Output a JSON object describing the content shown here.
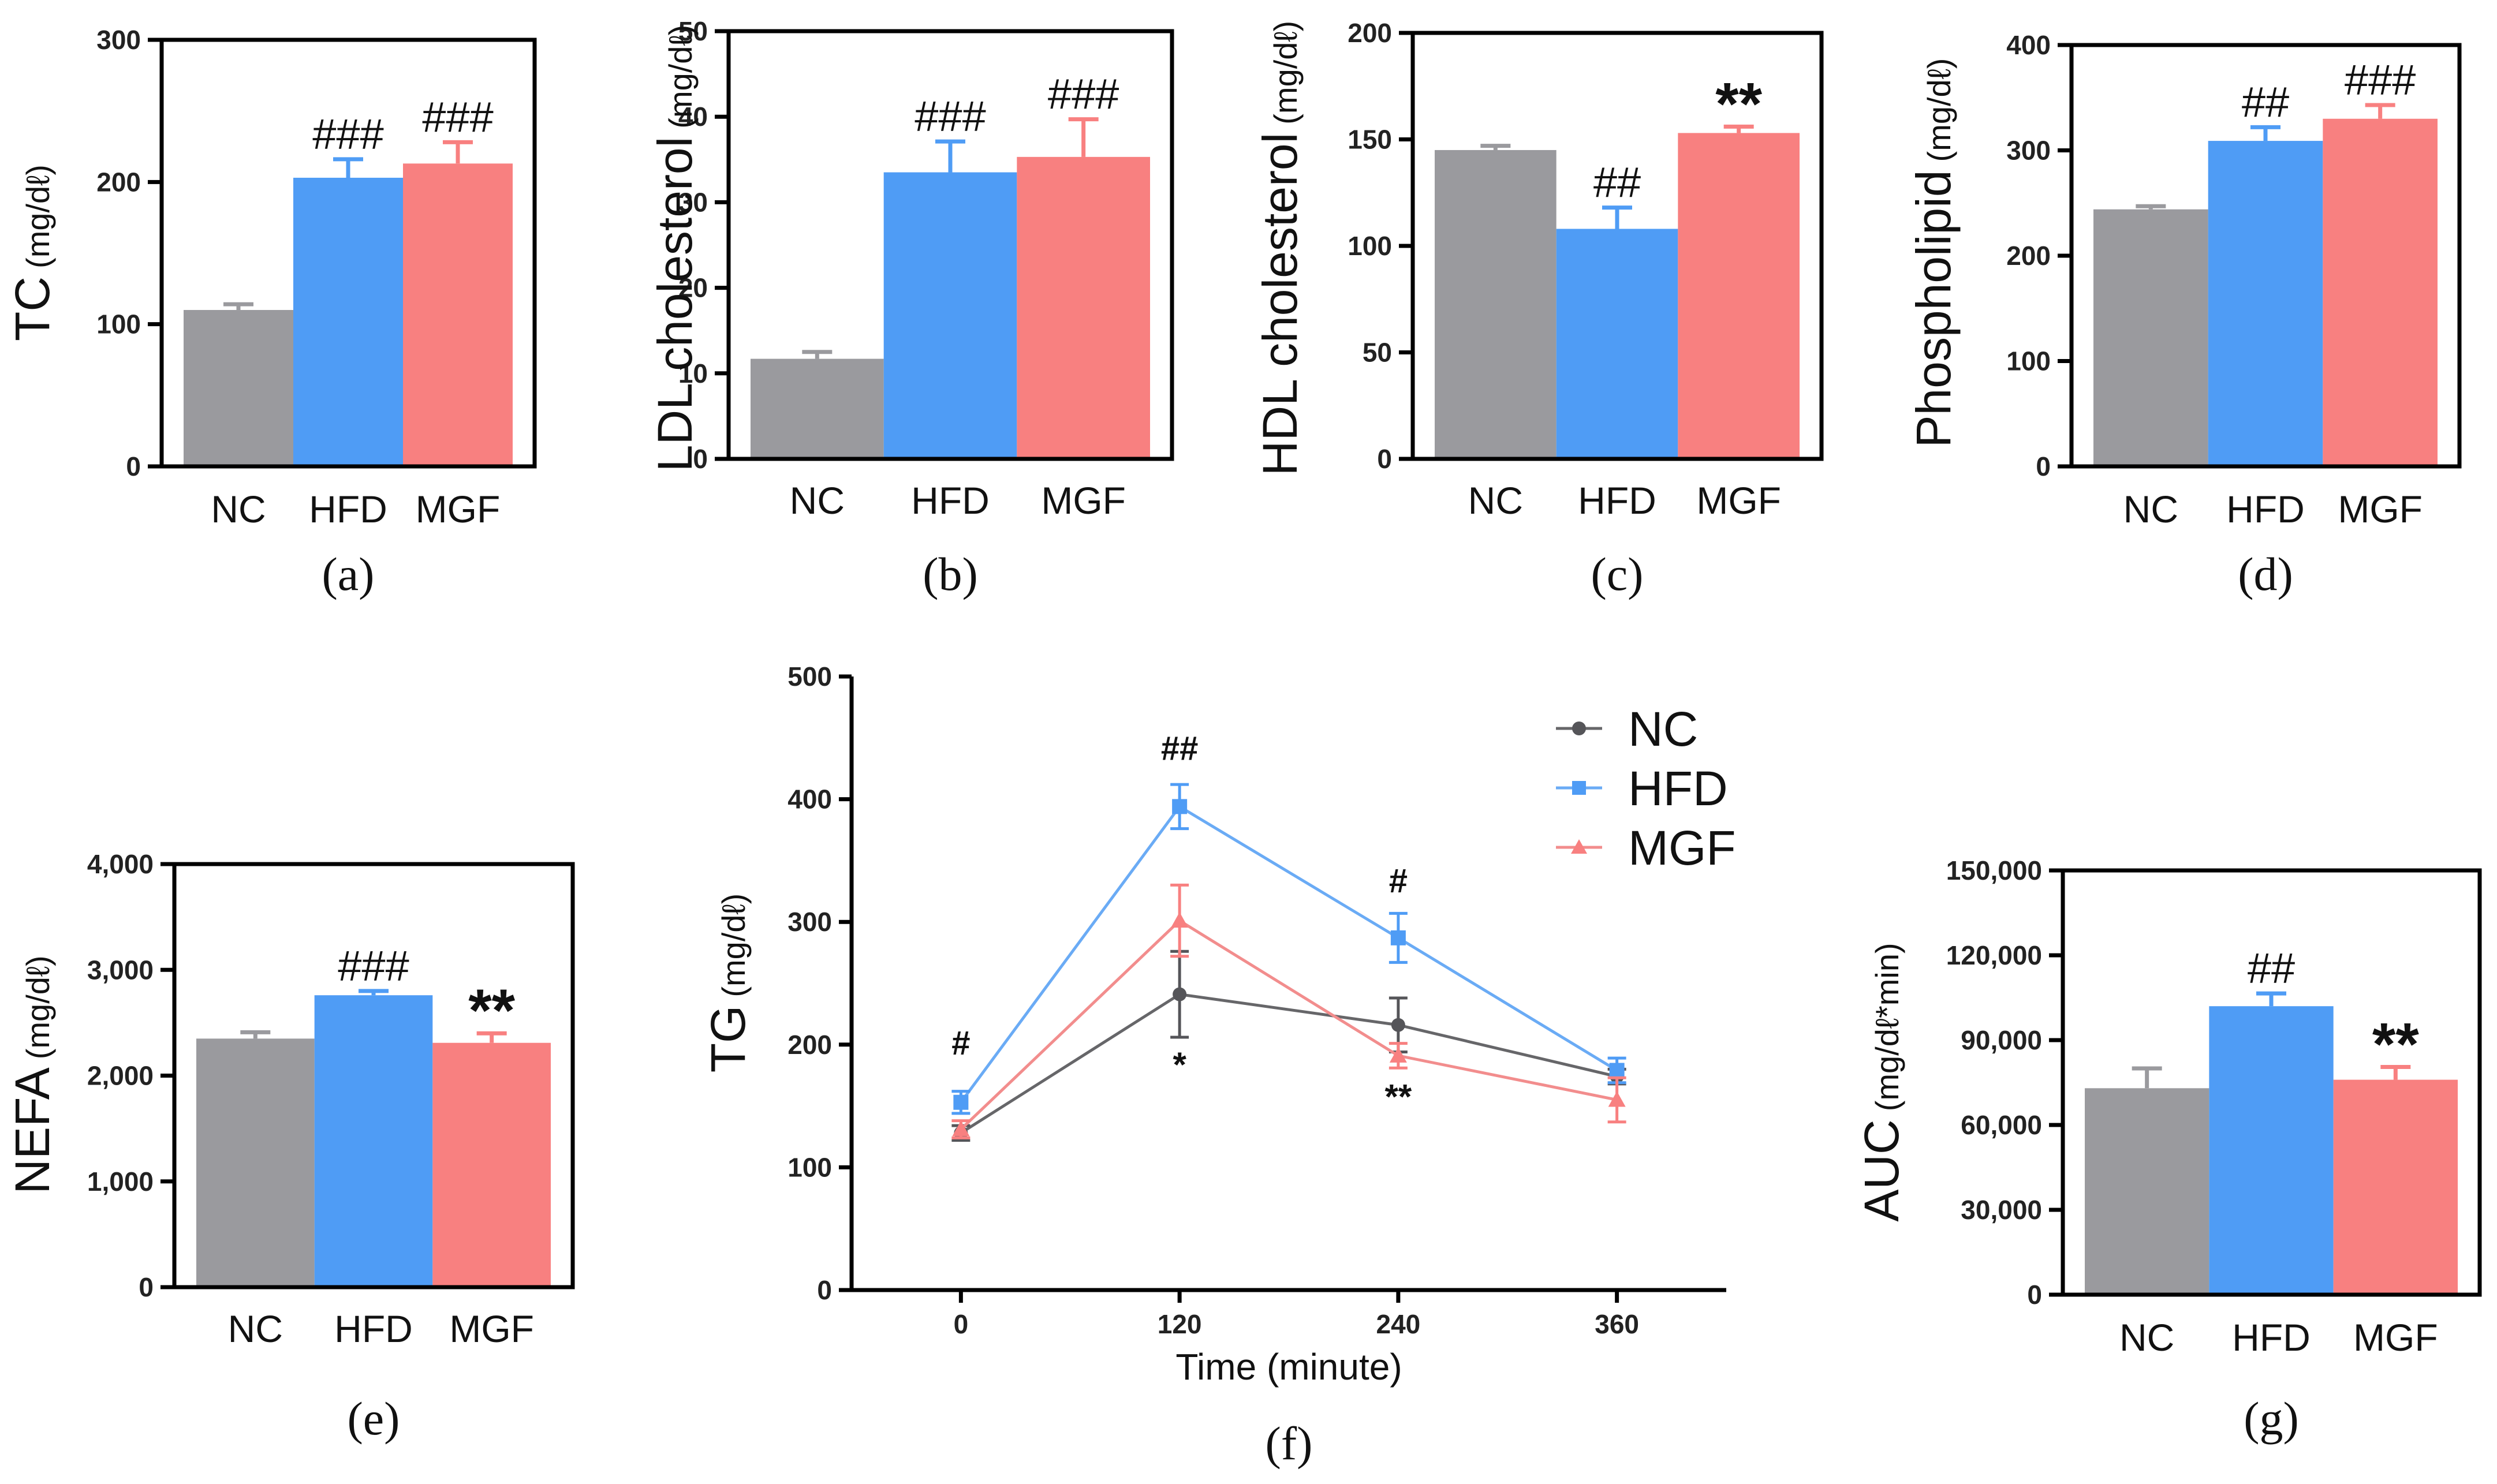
{
  "colors": {
    "NC": "#9a9a9e",
    "HFD": "#4f9cf5",
    "MGF": "#f88080",
    "hash_dark": "#1f2ba0",
    "star_red": "#c0282e"
  },
  "chart_data": [
    {
      "type": "bar",
      "id": "a",
      "panel_label": "(a)",
      "ylabel": "TC",
      "yunit": "(mg/dℓ)",
      "categories": [
        "NC",
        "HFD",
        "MGF"
      ],
      "values": [
        110,
        203,
        213
      ],
      "errors": [
        4,
        13,
        15
      ],
      "ylim": [
        0,
        300
      ],
      "yticks": [
        "0",
        "100",
        "200",
        "300"
      ],
      "annotations": [
        "",
        "###",
        "###"
      ]
    },
    {
      "type": "bar",
      "id": "b",
      "panel_label": "(b)",
      "ylabel": "LDL cholesterol",
      "yunit": "(mg/dℓ)",
      "categories": [
        "NC",
        "HFD",
        "MGF"
      ],
      "values": [
        11.7,
        33.5,
        35.3
      ],
      "errors": [
        0.8,
        3.6,
        4.4
      ],
      "ylim": [
        0,
        50
      ],
      "yticks": [
        "0",
        "10",
        "20",
        "30",
        "40",
        "50"
      ],
      "annotations": [
        "",
        "###",
        "###"
      ]
    },
    {
      "type": "bar",
      "id": "c",
      "panel_label": "(c)",
      "ylabel": "HDL cholesterol",
      "yunit": "(mg/dℓ)",
      "categories": [
        "NC",
        "HFD",
        "MGF"
      ],
      "values": [
        145,
        108,
        153
      ],
      "errors": [
        2,
        10,
        3
      ],
      "ylim": [
        0,
        200
      ],
      "yticks": [
        "0",
        "50",
        "100",
        "150",
        "200"
      ],
      "annotations": [
        "",
        "##",
        "**"
      ]
    },
    {
      "type": "bar",
      "id": "d",
      "panel_label": "(d)",
      "ylabel": "Phospholipid",
      "yunit": "(mg/dℓ)",
      "categories": [
        "NC",
        "HFD",
        "MGF"
      ],
      "values": [
        244,
        309,
        330
      ],
      "errors": [
        3,
        13,
        13
      ],
      "ylim": [
        0,
        400
      ],
      "yticks": [
        "0",
        "100",
        "200",
        "300",
        "400"
      ],
      "annotations": [
        "",
        "##",
        "###"
      ]
    },
    {
      "type": "bar",
      "id": "e",
      "panel_label": "(e)",
      "ylabel": "NEFA",
      "yunit": "(mg/dℓ)",
      "categories": [
        "NC",
        "HFD",
        "MGF"
      ],
      "values": [
        2350,
        2760,
        2310
      ],
      "errors": [
        60,
        40,
        90
      ],
      "ylim": [
        0,
        4000
      ],
      "yticks": [
        "0",
        "1,000",
        "2,000",
        "3,000",
        "4,000"
      ],
      "annotations": [
        "",
        "###",
        "**"
      ]
    },
    {
      "type": "line",
      "id": "f",
      "panel_label": "(f)",
      "ylabel": "TG",
      "yunit": "(mg/dℓ)",
      "xlabel": "Time (minute)",
      "x": [
        0,
        120,
        240,
        360
      ],
      "xticks": [
        "0",
        "120",
        "240",
        "360"
      ],
      "xlim": [
        -60,
        420
      ],
      "ylim": [
        0,
        500
      ],
      "yticks": [
        "0",
        "100",
        "200",
        "300",
        "400",
        "500"
      ],
      "series": [
        {
          "name": "NC",
          "values": [
            128,
            241,
            216,
            174
          ],
          "errors": [
            6,
            35,
            22,
            6
          ]
        },
        {
          "name": "HFD",
          "values": [
            153,
            394,
            287,
            179
          ],
          "errors": [
            9,
            18,
            20,
            10
          ]
        },
        {
          "name": "MGF",
          "values": [
            131,
            301,
            191,
            155
          ],
          "errors": [
            7,
            29,
            10,
            18
          ]
        }
      ],
      "annotations": [
        {
          "text": "#",
          "x": 0,
          "y": 192,
          "color": "hash_dark"
        },
        {
          "text": "##",
          "x": 120,
          "y": 432,
          "color": "hash_dark"
        },
        {
          "text": "#",
          "x": 240,
          "y": 324,
          "color": "hash_dark"
        },
        {
          "text": "*",
          "x": 120,
          "y": 174,
          "color": "star_red"
        },
        {
          "text": "**",
          "x": 240,
          "y": 148,
          "color": "star_red"
        }
      ],
      "legend_position": "top-right"
    },
    {
      "type": "bar",
      "id": "g",
      "panel_label": "(g)",
      "ylabel": "AUC",
      "yunit": "(mg/dℓ*min)",
      "categories": [
        "NC",
        "HFD",
        "MGF"
      ],
      "values": [
        73000,
        102000,
        76000
      ],
      "errors": [
        7000,
        4500,
        4500
      ],
      "ylim": [
        0,
        150000
      ],
      "yticks": [
        "0",
        "30,000",
        "60,000",
        "90,000",
        "120,000",
        "150,000"
      ],
      "annotations": [
        "",
        "##",
        "**"
      ]
    }
  ]
}
